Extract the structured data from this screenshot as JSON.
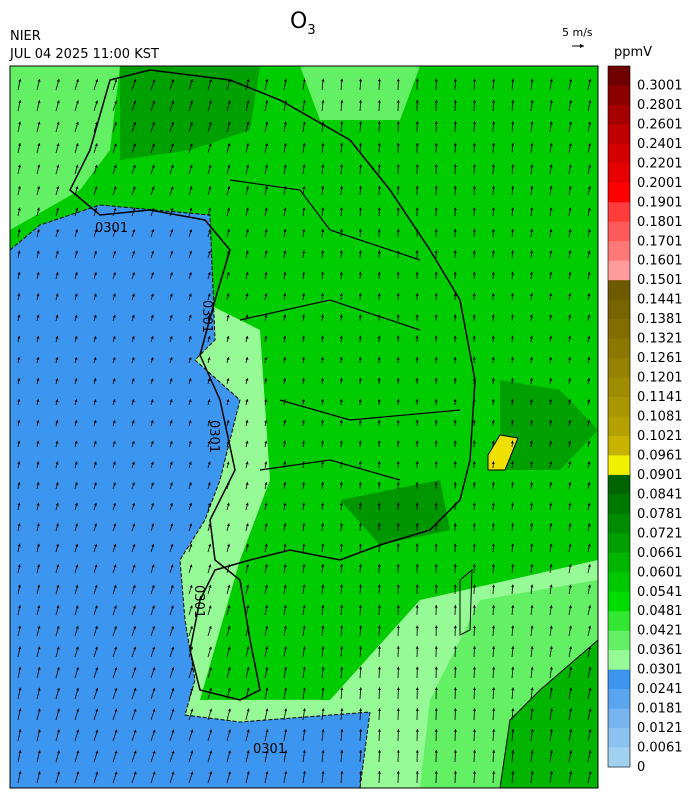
{
  "header": {
    "source": "NIER",
    "datetime": "JUL 04 2025 11:00 KST",
    "title": "O",
    "title_subscript": "3",
    "vector_scale": "5 m/s"
  },
  "colorbar": {
    "unit": "ppmV",
    "labels": [
      "0.3001",
      "0.2801",
      "0.2601",
      "0.2401",
      "0.2201",
      "0.2001",
      "0.1901",
      "0.1801",
      "0.1701",
      "0.1601",
      "0.1501",
      "0.1441",
      "0.1381",
      "0.1321",
      "0.1261",
      "0.1201",
      "0.1141",
      "0.1081",
      "0.1021",
      "0.0961",
      "0.0901",
      "0.0841",
      "0.0781",
      "0.0721",
      "0.0661",
      "0.0601",
      "0.0541",
      "0.0481",
      "0.0421",
      "0.0361",
      "0.0301",
      "0.0241",
      "0.0181",
      "0.0121",
      "0.0061",
      "0"
    ],
    "colors": [
      "#6e0000",
      "#8c0000",
      "#a50000",
      "#be0000",
      "#d20000",
      "#e60000",
      "#ff0000",
      "#ff3c3c",
      "#ff5a5a",
      "#ff7878",
      "#ff9b9b",
      "#6e5a00",
      "#786400",
      "#826e00",
      "#8c7800",
      "#968200",
      "#a08c00",
      "#aa9600",
      "#b4a000",
      "#c8b400",
      "#f0f000",
      "#006400",
      "#007800",
      "#008c00",
      "#00a000",
      "#00b400",
      "#00c800",
      "#00dc00",
      "#32e632",
      "#64f064",
      "#96fa96",
      "#3c96f0",
      "#5aa5f0",
      "#78b4f0",
      "#8cc3f0",
      "#a0d2f0"
    ]
  },
  "contour_labels": [
    "0301",
    "0301",
    "0301",
    "0301",
    "0301"
  ]
}
